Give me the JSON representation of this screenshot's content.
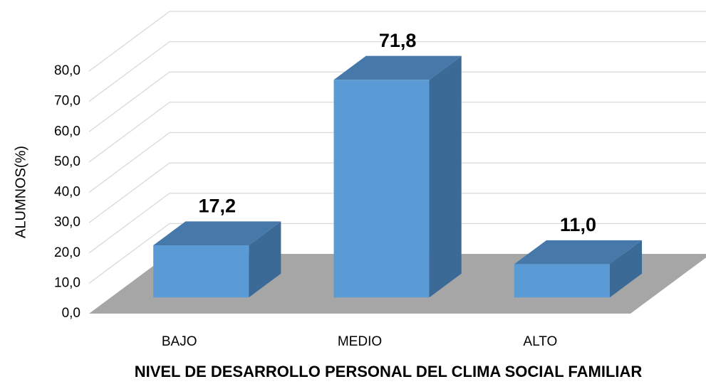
{
  "chart_data": {
    "type": "bar3d",
    "categories": [
      "BAJO",
      "MEDIO",
      "ALTO"
    ],
    "values": [
      17.2,
      71.8,
      11.0
    ],
    "value_labels": [
      "17,2",
      "71,8",
      "11,0"
    ],
    "color": "#5b9bd5",
    "ylim": [
      0,
      80
    ],
    "yticks": [
      {
        "value": 0,
        "label": "0,0"
      },
      {
        "value": 10,
        "label": "10,0"
      },
      {
        "value": 20,
        "label": "20,0"
      },
      {
        "value": 30,
        "label": "30,0"
      },
      {
        "value": 40,
        "label": "40,0"
      },
      {
        "value": 50,
        "label": "50,0"
      },
      {
        "value": 60,
        "label": "60,0"
      },
      {
        "value": 70,
        "label": "70,0"
      },
      {
        "value": 80,
        "label": "80,0"
      }
    ],
    "y_label": "ALUMNOS(%)",
    "x_label": "NIVEL  DE DESARROLLO PERSONAL DEL CLIMA SOCIAL FAMILIAR",
    "grid": true
  }
}
